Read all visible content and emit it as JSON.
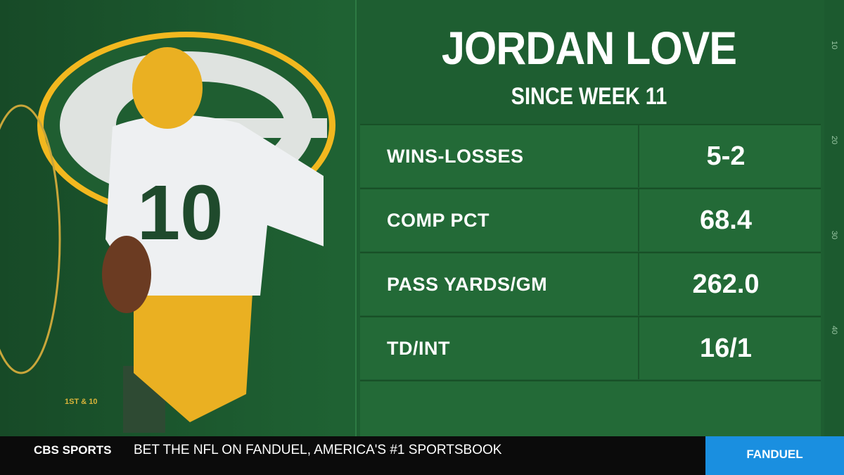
{
  "header": {
    "title": "JORDAN LOVE",
    "subtitle": "SINCE WEEK 11"
  },
  "table": {
    "rows": [
      [
        "WINS-LOSSES",
        "5-2"
      ],
      [
        "COMP PCT",
        "68.4"
      ],
      [
        "PASS YARDS/GM",
        "262.0"
      ],
      [
        "TD/INT",
        "16/1"
      ]
    ]
  },
  "field": {
    "down": "1ST & 10",
    "yard_markers": [
      "10",
      "20",
      "30",
      "40"
    ]
  },
  "ticker": {
    "network": "CBS SPORTS",
    "text": "BET THE NFL ON FANDUEL, AMERICA'S #1 SPORTSBOOK",
    "sponsor": "FANDUEL"
  }
}
